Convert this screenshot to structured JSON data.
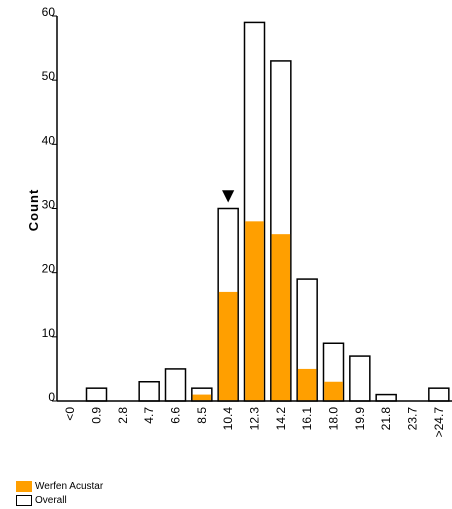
{
  "chart_data": {
    "type": "bar",
    "ylabel": "Count",
    "xlabel": "",
    "ylim": [
      0,
      60
    ],
    "yticks": [
      0,
      10,
      20,
      30,
      40,
      50,
      60
    ],
    "categories": [
      "<0",
      "0.9",
      "2.8",
      "4.7",
      "6.6",
      "8.5",
      "10.4",
      "12.3",
      "14.2",
      "16.1",
      "18.0",
      "19.9",
      "21.8",
      "23.7",
      ">24.7"
    ],
    "series": [
      {
        "name": "Overall",
        "values": [
          0,
          2,
          0,
          3,
          5,
          2,
          30,
          59,
          53,
          19,
          9,
          7,
          1,
          0,
          2
        ],
        "color": "#ffffff",
        "stroke": "#000000"
      },
      {
        "name": "Werfen Acustar",
        "values": [
          0,
          0,
          0,
          0,
          0,
          1,
          17,
          28,
          26,
          5,
          3,
          0,
          0,
          0,
          0
        ],
        "color": "#ff9f00"
      }
    ],
    "marker": {
      "category": "10.4",
      "symbol": "▼"
    },
    "legend": {
      "placement": "bottom-left",
      "entries": [
        "Werfen Acustar",
        "Overall"
      ]
    },
    "grid": false
  }
}
